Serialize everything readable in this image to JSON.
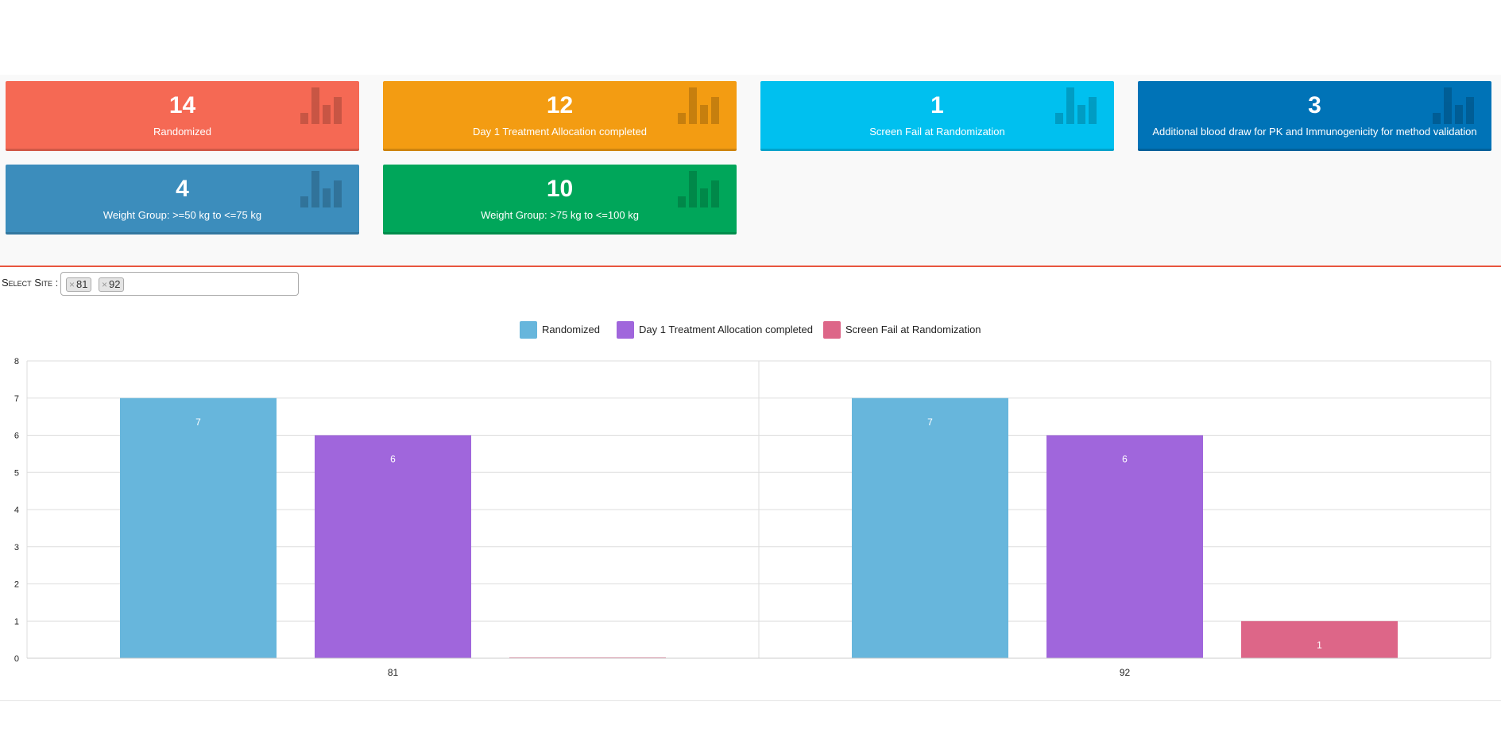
{
  "cards": [
    {
      "value": "14",
      "label": "Randomized",
      "color": "#f56954"
    },
    {
      "value": "12",
      "label": "Day 1 Treatment Allocation completed",
      "color": "#f39c12"
    },
    {
      "value": "1",
      "label": "Screen Fail at Randomization",
      "color": "#00c0ef"
    },
    {
      "value": "3",
      "label": "Additional blood draw for PK and Immunogenicity for method validation",
      "color": "#0073b7"
    },
    {
      "value": "4",
      "label": "Weight Group: >=50 kg to <=75 kg",
      "color": "#3c8dbc"
    },
    {
      "value": "10",
      "label": "Weight Group: >75 kg to <=100 kg",
      "color": "#00a65a"
    }
  ],
  "card_icon": "bar-chart-icon",
  "site_filter": {
    "label": "Select Site :",
    "tags": [
      {
        "text": "81",
        "remove_icon": "×"
      },
      {
        "text": "92",
        "remove_icon": "×"
      }
    ]
  },
  "chart_data": {
    "type": "bar",
    "categories": [
      "81",
      "92"
    ],
    "series": [
      {
        "name": "Randomized",
        "values": [
          7,
          7
        ],
        "color": "#67b6dc"
      },
      {
        "name": "Day 1 Treatment Allocation completed",
        "values": [
          6,
          6
        ],
        "color": "#a066dc"
      },
      {
        "name": "Screen Fail at Randomization",
        "values": [
          0,
          1
        ],
        "color": "#dd6688"
      }
    ],
    "ylim": [
      0,
      8
    ],
    "yticks": [
      0,
      1,
      2,
      3,
      4,
      5,
      6,
      7,
      8
    ],
    "grid": true,
    "legend": "top-center"
  }
}
